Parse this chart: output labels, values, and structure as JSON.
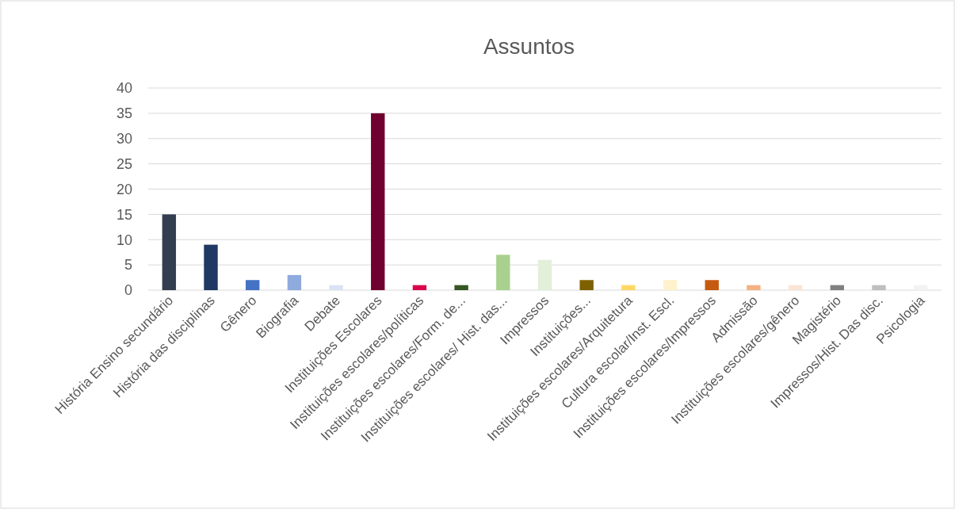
{
  "chart_data": {
    "type": "bar",
    "title": "Assuntos",
    "categories": [
      "História Ensino secundário",
      "História das disciplinas",
      "Gênero",
      "Biografia",
      "Debate",
      "Instituições Escolares",
      "Instituições escolares/políticas",
      "Instituições escolares/Form. de...",
      "Instituições escolares/ Hist. das...",
      "Impressos",
      "Instituições...",
      "Instituições escolares/Arquitetura",
      "Cultura escolar/Inst. Escl.",
      "Instituições escolares/Impressos",
      "Admissão",
      "Instituições escolares/gênero",
      "Magistério",
      "Impressos/Hist. Das disc.",
      "Psicologia"
    ],
    "values": [
      15,
      9,
      2,
      3,
      1,
      35,
      1,
      1,
      7,
      6,
      2,
      1,
      2,
      2,
      1,
      1,
      1,
      1,
      1
    ],
    "colors": [
      "#333f50",
      "#1f3864",
      "#4472c4",
      "#8faadc",
      "#dae3f3",
      "#70002f",
      "#d9044f",
      "#375623",
      "#a9d18e",
      "#e2f0d9",
      "#7f6000",
      "#ffd966",
      "#fff2cc",
      "#c55a11",
      "#f4b183",
      "#fbe5d6",
      "#808080",
      "#bfbfbf",
      "#f2f2f2"
    ],
    "ylim": [
      0,
      40
    ],
    "yticks": [
      0,
      5,
      10,
      15,
      20,
      25,
      30,
      35,
      40
    ],
    "grid": "y"
  }
}
